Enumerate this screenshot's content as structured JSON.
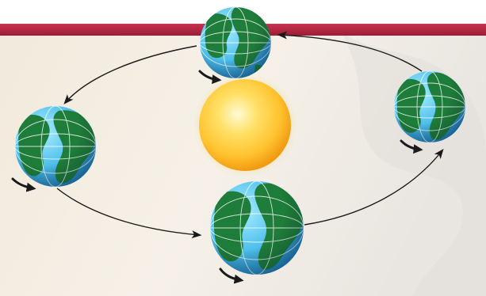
{
  "diagram": {
    "type": "earth-orbit-seasons",
    "bodies": [
      {
        "id": "sun",
        "label": ""
      },
      {
        "id": "earth-top",
        "label": ""
      },
      {
        "id": "earth-left",
        "label": ""
      },
      {
        "id": "earth-right",
        "label": ""
      },
      {
        "id": "earth-bottom",
        "label": ""
      }
    ],
    "orbit_direction": "counterclockwise",
    "rotation_arrows": 4
  },
  "colors": {
    "banner": "#b3213f",
    "background_warm": "#efe6d6",
    "background_light": "#faf7f1",
    "sun_core": "#fff6b0",
    "sun_edge": "#f0a020",
    "ocean": "#5cc5ec",
    "land": "#1e7d3a",
    "orbit_line": "#1a1a1a"
  }
}
